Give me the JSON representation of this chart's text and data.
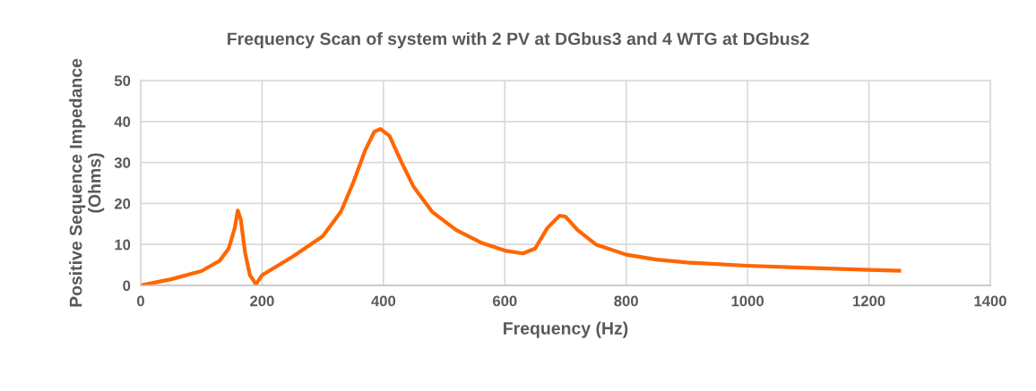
{
  "chart_data": {
    "type": "line",
    "title": "Frequency Scan of system with 2 PV at DGbus3 and 4 WTG at DGbus2",
    "xlabel": "Frequency (Hz)",
    "ylabel": "Positive Sequence Impedance\n(Ohms)",
    "x": [
      0,
      50,
      100,
      130,
      145,
      155,
      160,
      165,
      172,
      180,
      190,
      200,
      250,
      300,
      330,
      350,
      370,
      385,
      395,
      410,
      430,
      450,
      480,
      520,
      560,
      600,
      630,
      650,
      670,
      690,
      700,
      720,
      750,
      800,
      850,
      900,
      1000,
      1100,
      1200,
      1250
    ],
    "series": [
      {
        "color": "#ff6600",
        "values": [
          0,
          1.5,
          3.5,
          6,
          9,
          14,
          18.3,
          16,
          8,
          2.5,
          0.3,
          2.5,
          7,
          12,
          18,
          25,
          33,
          37.5,
          38.2,
          36.5,
          30,
          24,
          18,
          13.5,
          10.5,
          8.5,
          7.8,
          9,
          14,
          17,
          16.8,
          13.5,
          10,
          7.5,
          6.3,
          5.6,
          4.8,
          4.3,
          3.8,
          3.6
        ]
      }
    ],
    "xlim": [
      0,
      1400
    ],
    "xticks": [
      0,
      200,
      400,
      600,
      800,
      1000,
      1200,
      1400
    ],
    "ylim": [
      0,
      50
    ],
    "yticks": [
      0,
      10,
      20,
      30,
      40,
      50
    ],
    "grid": true,
    "marker": "none",
    "line_style": "solid",
    "legend": false
  }
}
